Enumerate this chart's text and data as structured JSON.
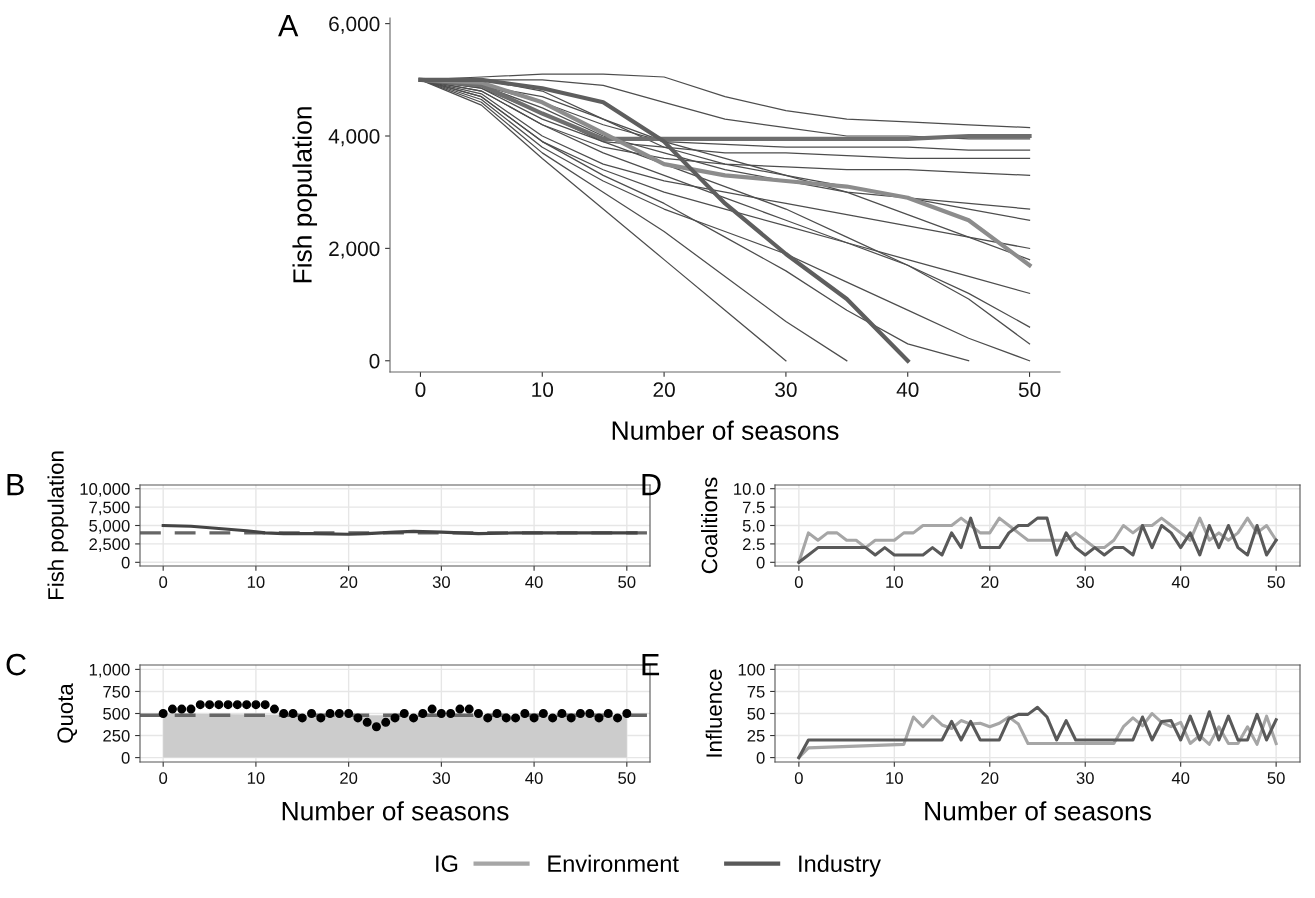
{
  "chart_data": [
    {
      "type": "line",
      "title": "A",
      "xlabel": "Number of seasons",
      "ylabel": "Fish population",
      "color": "#4d4d4d",
      "grid": false,
      "x": [
        0,
        5,
        10,
        15,
        20,
        25,
        30,
        35,
        40,
        45,
        50
      ],
      "xlim": [
        -2.5,
        52.5
      ],
      "xticks": [
        0,
        10,
        20,
        30,
        40,
        50
      ],
      "ylim": [
        -200,
        6100
      ],
      "yticks": [
        0,
        {
          "value": 2000,
          "label": "2,000"
        },
        {
          "value": 4000,
          "label": "4,000"
        },
        {
          "value": 6000,
          "label": "6,000"
        }
      ],
      "series": [
        {
          "values": [
            5000,
            5050,
            5100,
            5100,
            5050,
            4700,
            4450,
            4300,
            4250,
            4200,
            4150
          ]
        },
        {
          "values": [
            5000,
            5000,
            5000,
            4900,
            4600,
            4300,
            4150,
            4000,
            4000,
            3950,
            3950
          ]
        },
        {
          "values": [
            5000,
            4900,
            4600,
            4200,
            3900,
            3850,
            3800,
            3800,
            3800,
            3750,
            3750
          ]
        },
        {
          "values": [
            5000,
            4850,
            4300,
            3900,
            3800,
            3700,
            3700,
            3650,
            3600,
            3600,
            3600
          ]
        },
        {
          "values": [
            5000,
            4800,
            4200,
            3800,
            3600,
            3500,
            3450,
            3400,
            3400,
            3350,
            3300
          ]
        },
        {
          "values": [
            5000,
            4900,
            4500,
            4000,
            3700,
            3400,
            3200,
            3000,
            2900,
            2800,
            2700
          ]
        },
        {
          "values": [
            5000,
            4750,
            4000,
            3500,
            3200,
            3000,
            2800,
            2600,
            2400,
            2200,
            2000
          ]
        },
        {
          "values": [
            5000,
            4700,
            3900,
            3400,
            3000,
            2700,
            2400,
            2100,
            1800,
            1500,
            1200
          ]
        },
        {
          "values": [
            5000,
            4800,
            4200,
            3700,
            3300,
            2900,
            2500,
            2100,
            1700,
            1200,
            600
          ]
        },
        {
          "values": [
            5000,
            4650,
            3800,
            3200,
            2700,
            2300,
            1900,
            1400,
            900,
            400,
            0
          ]
        },
        {
          "values": [
            5000,
            4600,
            3700,
            3000,
            2300,
            1500,
            700,
            0,
            null,
            null,
            null
          ]
        },
        {
          "values": [
            5000,
            4550,
            3600,
            2700,
            1800,
            900,
            0,
            null,
            null,
            null,
            null
          ]
        },
        {
          "values": [
            5000,
            4700,
            3900,
            3300,
            2800,
            2200,
            1600,
            900,
            300,
            0,
            null
          ]
        },
        {
          "values": [
            5000,
            4850,
            4400,
            3900,
            3500,
            3100,
            2700,
            2200,
            1700,
            1100,
            300
          ]
        },
        {
          "values": [
            5000,
            5000,
            4800,
            4300,
            3900,
            3600,
            3300,
            3000,
            2600,
            2200,
            1800
          ]
        },
        {
          "values": [
            5000,
            4900,
            4700,
            4300,
            3800,
            3500,
            3300,
            3100,
            2900,
            2700,
            2500
          ]
        },
        {
          "color": "#6e6e6e",
          "values": [
            5000,
            4900,
            4400,
            3950,
            3950,
            3950,
            3950,
            3950,
            3950,
            4000,
            4000
          ]
        },
        {
          "color": "#8c8c8c",
          "values": [
            5000,
            4950,
            4600,
            4050,
            3500,
            3300,
            3200,
            3100,
            2900,
            2500,
            1700
          ]
        },
        {
          "color": "#5e5e5e",
          "values": [
            5000,
            5000,
            4850,
            4600,
            3900,
            2800,
            1900,
            1100,
            0,
            null,
            null
          ]
        }
      ]
    },
    {
      "type": "line",
      "title": "B",
      "ylabel": "Fish population",
      "grid": true,
      "x": [
        0,
        3,
        6,
        9,
        11,
        13,
        16,
        20,
        22,
        25,
        27,
        30,
        34,
        38,
        42,
        46,
        51
      ],
      "xlim": [
        -2.5,
        52.5
      ],
      "xticks": [
        0,
        10,
        20,
        30,
        40,
        50
      ],
      "ylim": [
        -500,
        10500
      ],
      "yticks": [
        0,
        {
          "value": 2500,
          "label": "2,500"
        },
        {
          "value": 5000,
          "label": "5,000"
        },
        {
          "value": 7500,
          "label": "7,500"
        },
        {
          "value": 10000,
          "label": "10,000"
        }
      ],
      "ref_lines": [
        {
          "axis": "y",
          "value": 4000,
          "color": "#666666",
          "line_style": "dashed"
        }
      ],
      "series": [
        {
          "color": "#444444",
          "values": [
            5000,
            4900,
            4600,
            4300,
            4000,
            3900,
            3900,
            3800,
            3900,
            4100,
            4200,
            4100,
            3900,
            4000,
            4000,
            4000,
            4000
          ]
        }
      ]
    },
    {
      "type": "scatter",
      "title": "C",
      "xlabel": "Number of seasons",
      "ylabel": "Quota",
      "grid": true,
      "xlim": [
        -2.5,
        52.5
      ],
      "xticks": [
        0,
        10,
        20,
        30,
        40,
        50
      ],
      "ylim": [
        -50,
        1050
      ],
      "yticks": [
        0,
        250,
        500,
        750,
        {
          "value": 1000,
          "label": "1,000"
        }
      ],
      "ref_lines": [
        {
          "axis": "y",
          "value": 480,
          "color": "#666666",
          "line_style": "dashed"
        }
      ],
      "series": [
        {
          "type": "area",
          "color": "#cccccc",
          "x": [
            0,
            10,
            20,
            30,
            50
          ],
          "values": [
            500,
            490,
            480,
            480,
            480
          ]
        },
        {
          "type": "scatter",
          "marker": "circle",
          "color": "#000000",
          "x": [
            0,
            1,
            2,
            3,
            4,
            5,
            6,
            7,
            8,
            9,
            10,
            11,
            12,
            13,
            14,
            15,
            16,
            17,
            18,
            19,
            20,
            21,
            22,
            23,
            24,
            25,
            26,
            27,
            28,
            29,
            30,
            31,
            32,
            33,
            34,
            35,
            36,
            37,
            38,
            39,
            40,
            41,
            42,
            43,
            44,
            45,
            46,
            47,
            48,
            49,
            50
          ],
          "values": [
            500,
            550,
            550,
            550,
            600,
            600,
            600,
            600,
            600,
            600,
            600,
            600,
            550,
            500,
            500,
            450,
            500,
            450,
            500,
            500,
            500,
            450,
            400,
            350,
            400,
            450,
            500,
            450,
            500,
            550,
            500,
            500,
            550,
            550,
            500,
            450,
            500,
            450,
            450,
            500,
            450,
            500,
            450,
            500,
            450,
            500,
            500,
            450,
            500,
            450,
            500
          ]
        }
      ]
    },
    {
      "type": "line",
      "title": "D",
      "ylabel": "Coalitions",
      "grid": true,
      "x": [
        0,
        1,
        2,
        3,
        4,
        5,
        6,
        7,
        8,
        9,
        10,
        11,
        12,
        13,
        14,
        15,
        16,
        17,
        18,
        19,
        20,
        21,
        22,
        23,
        24,
        25,
        26,
        27,
        28,
        29,
        30,
        31,
        32,
        33,
        34,
        35,
        36,
        37,
        38,
        39,
        40,
        41,
        42,
        43,
        44,
        45,
        46,
        47,
        48,
        49,
        50
      ],
      "xlim": [
        -2.5,
        52.5
      ],
      "xticks": [
        0,
        10,
        20,
        30,
        40,
        50
      ],
      "ylim": [
        -0.5,
        10.5
      ],
      "yticks": [
        0,
        2.5,
        {
          "value": 5,
          "label": "5.0"
        },
        7.5,
        {
          "value": 10,
          "label": "10.0"
        }
      ],
      "series": [
        {
          "color": "#a6a6a6",
          "values": [
            0,
            4,
            3,
            4,
            4,
            3,
            3,
            2,
            3,
            3,
            3,
            4,
            4,
            5,
            5,
            5,
            5,
            6,
            5,
            4,
            4,
            6,
            5,
            4,
            3,
            3,
            3,
            3,
            3,
            4,
            3,
            2,
            2,
            3,
            5,
            4,
            5,
            5,
            6,
            5,
            4,
            3,
            6,
            3,
            4,
            3,
            4,
            6,
            4,
            5,
            3
          ]
        },
        {
          "color": "#595959",
          "values": [
            0,
            1,
            2,
            2,
            2,
            2,
            2,
            2,
            1,
            2,
            1,
            1,
            1,
            1,
            2,
            1,
            4,
            2,
            6,
            2,
            2,
            2,
            4,
            5,
            5,
            6,
            6,
            1,
            4,
            2,
            1,
            2,
            1,
            2,
            2,
            1,
            5,
            2,
            5,
            4,
            2,
            4,
            1,
            5,
            2,
            5,
            2,
            1,
            5,
            1,
            3
          ]
        }
      ]
    },
    {
      "type": "line",
      "title": "E",
      "xlabel": "Number of seasons",
      "ylabel": "Influence",
      "grid": true,
      "legend": "bottom",
      "legend_title": "IG",
      "xlim": [
        -2.5,
        52.5
      ],
      "xticks": [
        0,
        10,
        20,
        30,
        40,
        50
      ],
      "ylim": [
        -5,
        105
      ],
      "yticks": [
        0,
        25,
        50,
        75,
        100
      ],
      "series": [
        {
          "name": "Environment",
          "color": "#a6a6a6",
          "x": [
            0,
            1,
            11,
            12,
            13,
            14,
            15,
            16,
            17,
            18,
            19,
            20,
            21,
            22,
            23,
            24,
            33,
            34,
            35,
            36,
            37,
            38,
            39,
            40,
            41,
            42,
            43,
            44,
            45,
            46,
            47,
            48,
            49,
            50
          ],
          "values": [
            0,
            11,
            15,
            46,
            35,
            47,
            37,
            33,
            42,
            38,
            39,
            35,
            39,
            46,
            38,
            16,
            16,
            35,
            45,
            36,
            50,
            40,
            35,
            40,
            16,
            25,
            15,
            35,
            16,
            16,
            35,
            15,
            47,
            16
          ]
        },
        {
          "name": "Industry",
          "color": "#595959",
          "x": [
            0,
            1,
            15,
            16,
            17,
            18,
            19,
            20,
            21,
            22,
            23,
            24,
            25,
            26,
            27,
            28,
            29,
            35,
            36,
            37,
            38,
            39,
            40,
            41,
            42,
            43,
            44,
            45,
            46,
            47,
            48,
            49,
            50
          ],
          "values": [
            0,
            20,
            20,
            41,
            20,
            41,
            20,
            20,
            20,
            44,
            49,
            49,
            57,
            46,
            20,
            42,
            20,
            20,
            46,
            20,
            41,
            42,
            20,
            47,
            20,
            52,
            20,
            47,
            20,
            20,
            49,
            20,
            43
          ]
        }
      ]
    }
  ]
}
